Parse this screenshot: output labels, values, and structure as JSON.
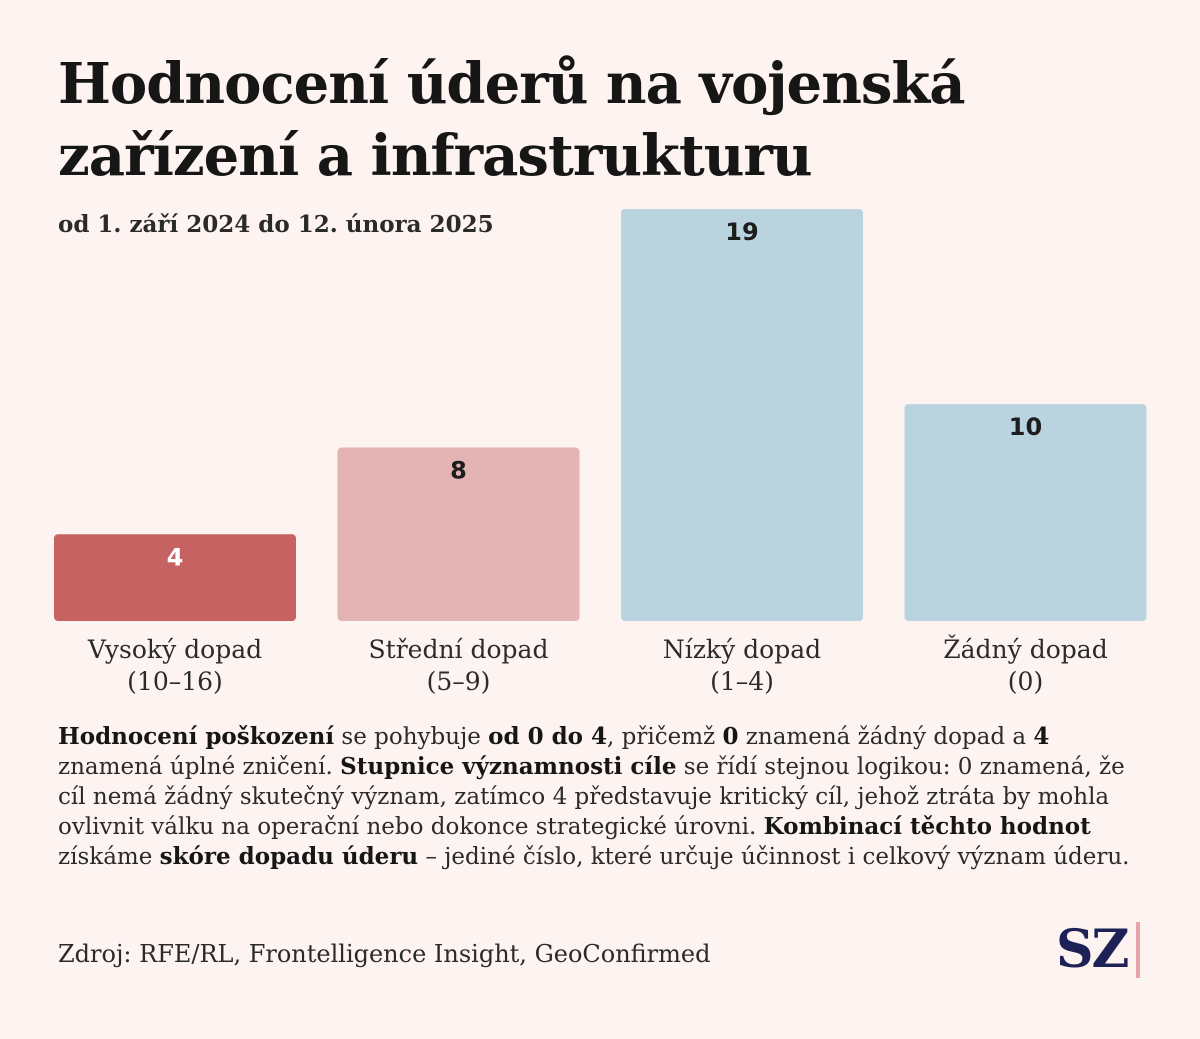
{
  "header": {
    "title": "Hodnocení úderů na vojenská zařízení a infrastrukturu",
    "subtitle": "od 1. září 2024 do 12. února 2025"
  },
  "chart_data": {
    "type": "bar",
    "title": "Hodnocení úderů na vojenská zařízení a infrastrukturu",
    "subtitle": "od 1. září 2024 do 12. února 2025",
    "categories": [
      [
        "Vysoký dopad",
        "(10–16)"
      ],
      [
        "Střední dopad",
        "(5–9)"
      ],
      [
        "Nízký dopad",
        "(1–4)"
      ],
      [
        "Žádný dopad",
        "(0)"
      ]
    ],
    "values": [
      4,
      8,
      19,
      10
    ],
    "colors": [
      "#c66262",
      "#e3b4b3",
      "#b9d3df",
      "#b9d3df"
    ],
    "label_colors": [
      "#ffffff",
      "#1d1d1d",
      "#1d1d1d",
      "#1d1d1d"
    ],
    "ylim": [
      0,
      19
    ],
    "grid": false,
    "legend": "none"
  },
  "description": [
    {
      "text": "Hodnocení poškození",
      "bold": true
    },
    {
      "text": " se pohybuje ",
      "bold": false
    },
    {
      "text": "od 0 do 4",
      "bold": true
    },
    {
      "text": ", přičemž ",
      "bold": false
    },
    {
      "text": "0",
      "bold": true
    },
    {
      "text": " znamená žádný dopad a ",
      "bold": false
    },
    {
      "text": "4",
      "bold": true
    },
    {
      "text": " znamená úplné zničení. ",
      "bold": false
    },
    {
      "text": "Stupnice významnosti cíle",
      "bold": true
    },
    {
      "text": " se řídí stejnou logikou: 0 znamená, že cíl nemá žádný skutečný význam, zatímco 4 představuje kritický cíl, jehož ztráta by mohla ovlivnit válku na operační nebo dokonce strategické úrovni. ",
      "bold": false
    },
    {
      "text": "Kombinací těchto hodnot",
      "bold": true
    },
    {
      "text": " získáme ",
      "bold": false
    },
    {
      "text": "skóre dopadu úderu",
      "bold": true
    },
    {
      "text": " – jediné číslo, které určuje účinnost i celkový význam úderu.",
      "bold": false
    }
  ],
  "footer": {
    "source": "Zdroj: RFE/RL, Frontelligence Insight, GeoConfirmed",
    "logo": "SZ"
  }
}
